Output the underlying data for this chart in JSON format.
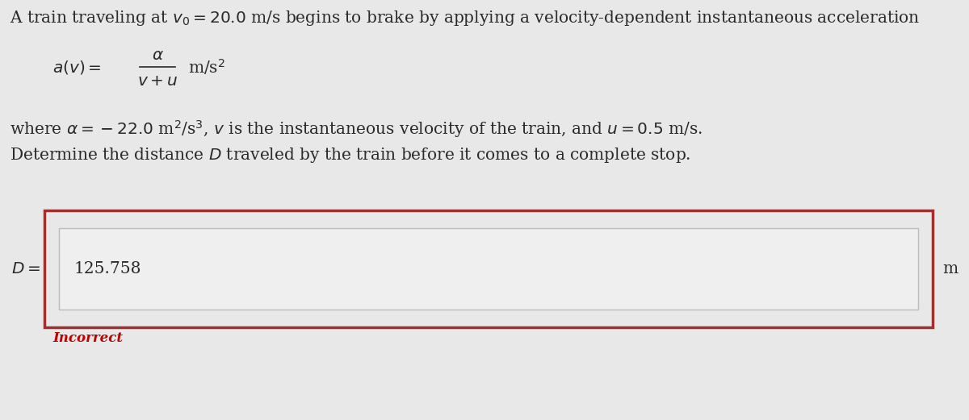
{
  "bg_color": "#e8e8e8",
  "inner_box_bg": "#f0efef",
  "answer_box_bg": "#e8e8e8",
  "title_line": "A train traveling at $v_0 = 20.0$ m/s begins to brake by applying a velocity-dependent instantaneous acceleration",
  "where_line": "where $\\alpha = -22.0$ m$^2$/s$^3$, $v$ is the instantaneous velocity of the train, and $u = 0.5$ m/s.",
  "determine_line": "Determine the distance $D$ traveled by the train before it comes to a complete stop.",
  "answer_value": "125.758",
  "answer_unit": "m",
  "incorrect_text": "Incorrect",
  "incorrect_color": "#c00000",
  "box_border_color": "#a03030",
  "text_color": "#2a2a2a",
  "font_size_main": 14.5,
  "font_size_answer": 14.5
}
